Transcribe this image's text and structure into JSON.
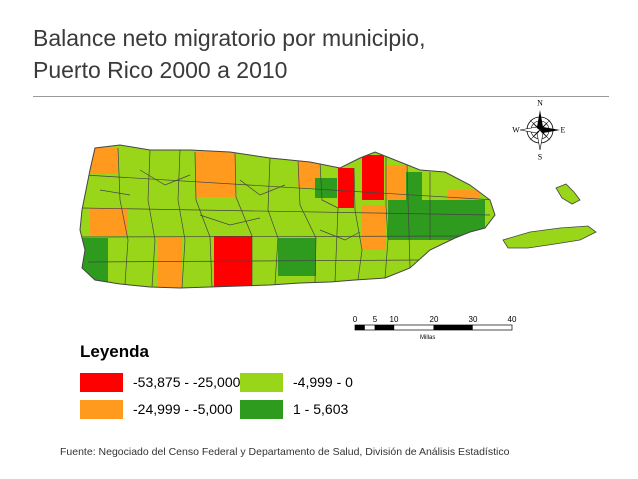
{
  "title": {
    "line1": "Balance neto migratorio por municipio,",
    "line2": "Puerto Rico 2000 a 2010"
  },
  "colors": {
    "red": "#ff0000",
    "orange": "#ff9a1e",
    "light_green": "#99d619",
    "dark_green": "#2e9a1e",
    "border": "#444444"
  },
  "legend": {
    "title": "Leyenda",
    "items": [
      {
        "label": "-53,875 - -25,000",
        "color": "#ff0000"
      },
      {
        "label": "-24,999 - -5,000",
        "color": "#ff9a1e"
      },
      {
        "label": "-4,999 - 0",
        "color": "#99d619"
      },
      {
        "label": "1 - 5,603",
        "color": "#2e9a1e"
      }
    ]
  },
  "scale_bar": {
    "ticks": [
      "0",
      "5",
      "10",
      "20",
      "30",
      "40"
    ],
    "unit": "Millas"
  },
  "compass": {
    "n": "N",
    "s": "S",
    "e": "E",
    "w": "W"
  },
  "source": "Fuente: Negociado del Censo Federal y Departamento de Salud, División de Análisis Estadístico"
}
